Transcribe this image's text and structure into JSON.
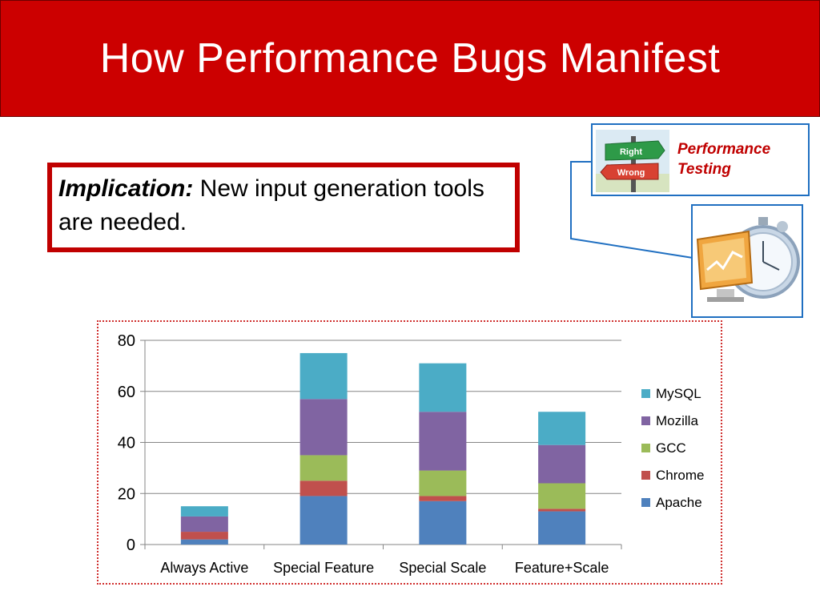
{
  "slide": {
    "title": "How Performance Bugs Manifest",
    "implication_lead": "Implication:",
    "implication_text": " New input generation tools are needed.",
    "perf_label_line1": "Performance",
    "perf_label_line2": "Testing",
    "sign_right": "Right",
    "sign_wrong": "Wrong",
    "accent_color": "#cc0000",
    "border_blue": "#1f6fc1"
  },
  "chart_data": {
    "type": "bar",
    "stacked": true,
    "categories": [
      "Always Active",
      "Special Feature",
      "Special Scale",
      "Feature+Scale"
    ],
    "series": [
      {
        "name": "Apache",
        "color": "#4f81bd",
        "values": [
          2,
          19,
          17,
          13
        ]
      },
      {
        "name": "Chrome",
        "color": "#c0504d",
        "values": [
          3,
          6,
          2,
          1
        ]
      },
      {
        "name": "GCC",
        "color": "#9bbb59",
        "values": [
          0,
          10,
          10,
          10
        ]
      },
      {
        "name": "Mozilla",
        "color": "#8064a2",
        "values": [
          6,
          22,
          23,
          15
        ]
      },
      {
        "name": "MySQL",
        "color": "#4bacc6",
        "values": [
          4,
          18,
          19,
          13
        ]
      }
    ],
    "ylim": [
      0,
      80
    ],
    "yticks": [
      0,
      20,
      40,
      60,
      80
    ],
    "grid": true,
    "legend_position": "right"
  }
}
